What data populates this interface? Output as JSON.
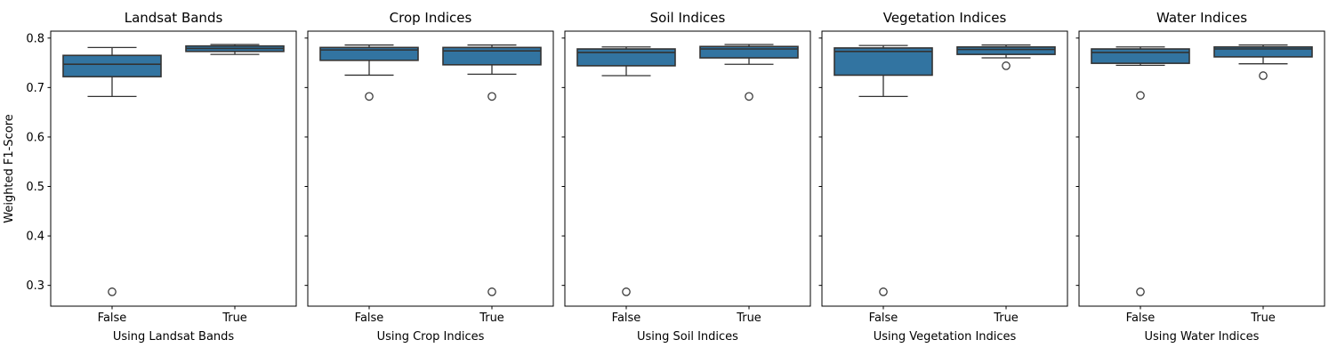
{
  "figure": {
    "background": "#ffffff"
  },
  "chart_data": {
    "type": "box",
    "ylabel": "Weighted F1-Score",
    "categories": [
      "False",
      "True"
    ],
    "ylim": [
      0.258,
      0.814
    ],
    "yticks": [
      0.8,
      0.7,
      0.6,
      0.5,
      0.4,
      0.3
    ],
    "grid": false,
    "legend": "none",
    "box_fill_color": "#3274a1",
    "box_line_color": "#333333",
    "flier_edge_color": "#3d3d3d",
    "spine_color": "#000000",
    "panels": [
      {
        "title": "Landsat Bands",
        "xlabel": "Using Landsat Bands",
        "boxes": [
          {
            "category": "False",
            "whislo": 0.682,
            "q1": 0.722,
            "med": 0.747,
            "q3": 0.765,
            "whishi": 0.781,
            "fliers": [
              0.287
            ]
          },
          {
            "category": "True",
            "whislo": 0.767,
            "q1": 0.773,
            "med": 0.779,
            "q3": 0.784,
            "whishi": 0.787,
            "fliers": []
          }
        ]
      },
      {
        "title": "Crop Indices",
        "xlabel": "Using Crop Indices",
        "boxes": [
          {
            "category": "False",
            "whislo": 0.725,
            "q1": 0.755,
            "med": 0.776,
            "q3": 0.781,
            "whishi": 0.786,
            "fliers": [
              0.682
            ]
          },
          {
            "category": "True",
            "whislo": 0.727,
            "q1": 0.746,
            "med": 0.774,
            "q3": 0.781,
            "whishi": 0.786,
            "fliers": [
              0.682,
              0.287
            ]
          }
        ]
      },
      {
        "title": "Soil Indices",
        "xlabel": "Using Soil Indices",
        "boxes": [
          {
            "category": "False",
            "whislo": 0.724,
            "q1": 0.744,
            "med": 0.771,
            "q3": 0.778,
            "whishi": 0.782,
            "fliers": [
              0.287
            ]
          },
          {
            "category": "True",
            "whislo": 0.747,
            "q1": 0.76,
            "med": 0.778,
            "q3": 0.783,
            "whishi": 0.787,
            "fliers": [
              0.682
            ]
          }
        ]
      },
      {
        "title": "Vegetation Indices",
        "xlabel": "Using Vegetation Indices",
        "boxes": [
          {
            "category": "False",
            "whislo": 0.682,
            "q1": 0.725,
            "med": 0.773,
            "q3": 0.78,
            "whishi": 0.785,
            "fliers": [
              0.287
            ]
          },
          {
            "category": "True",
            "whislo": 0.76,
            "q1": 0.767,
            "med": 0.777,
            "q3": 0.782,
            "whishi": 0.786,
            "fliers": [
              0.744
            ]
          }
        ]
      },
      {
        "title": "Water Indices",
        "xlabel": "Using Water Indices",
        "boxes": [
          {
            "category": "False",
            "whislo": 0.745,
            "q1": 0.749,
            "med": 0.771,
            "q3": 0.778,
            "whishi": 0.782,
            "fliers": [
              0.684,
              0.287
            ]
          },
          {
            "category": "True",
            "whislo": 0.748,
            "q1": 0.762,
            "med": 0.778,
            "q3": 0.782,
            "whishi": 0.786,
            "fliers": [
              0.724
            ]
          }
        ]
      }
    ]
  }
}
